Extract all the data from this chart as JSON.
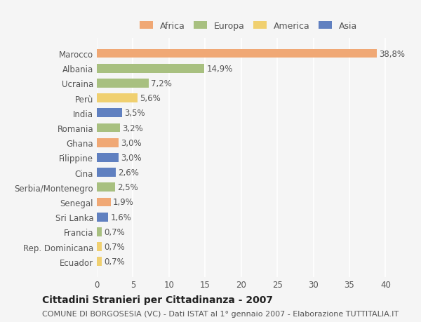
{
  "categories": [
    "Marocco",
    "Albania",
    "Ucraina",
    "Perù",
    "India",
    "Romania",
    "Ghana",
    "Filippine",
    "Cina",
    "Serbia/Montenegro",
    "Senegal",
    "Sri Lanka",
    "Francia",
    "Rep. Dominicana",
    "Ecuador"
  ],
  "values": [
    38.8,
    14.9,
    7.2,
    5.6,
    3.5,
    3.2,
    3.0,
    3.0,
    2.6,
    2.5,
    1.9,
    1.6,
    0.7,
    0.7,
    0.7
  ],
  "labels": [
    "38,8%",
    "14,9%",
    "7,2%",
    "5,6%",
    "3,5%",
    "3,2%",
    "3,0%",
    "3,0%",
    "2,6%",
    "2,5%",
    "1,9%",
    "1,6%",
    "0,7%",
    "0,7%",
    "0,7%"
  ],
  "continents": [
    "Africa",
    "Europa",
    "Europa",
    "America",
    "Asia",
    "Europa",
    "Africa",
    "Asia",
    "Asia",
    "Europa",
    "Africa",
    "Asia",
    "Europa",
    "America",
    "America"
  ],
  "continent_colors": {
    "Africa": "#F0A875",
    "Europa": "#A8C080",
    "America": "#F0D070",
    "Asia": "#6080C0"
  },
  "legend_order": [
    "Africa",
    "Europa",
    "America",
    "Asia"
  ],
  "title": "Cittadini Stranieri per Cittadinanza - 2007",
  "subtitle": "COMUNE DI BORGOSESIA (VC) - Dati ISTAT al 1° gennaio 2007 - Elaborazione TUTTITALIA.IT",
  "xlim": [
    0,
    42
  ],
  "xticks": [
    0,
    5,
    10,
    15,
    20,
    25,
    30,
    35,
    40
  ],
  "background_color": "#f5f5f5",
  "bar_height": 0.6,
  "label_fontsize": 8.5,
  "tick_fontsize": 8.5,
  "title_fontsize": 10,
  "subtitle_fontsize": 8
}
